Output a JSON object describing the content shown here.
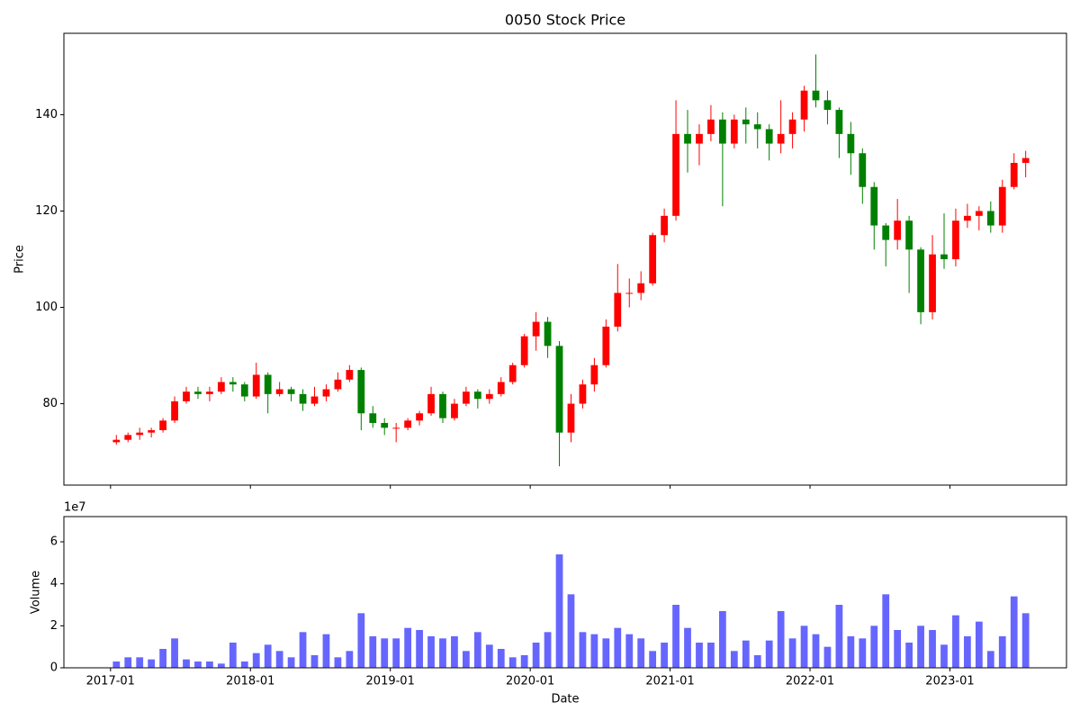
{
  "chart_data": [
    {
      "type": "candlestick",
      "title": "0050 Stock Price",
      "y_label": "Price",
      "up_color": "#ff0000",
      "down_color": "#008000",
      "x": [
        "2017-01",
        "2017-02",
        "2017-03",
        "2017-04",
        "2017-05",
        "2017-06",
        "2017-07",
        "2017-08",
        "2017-09",
        "2017-10",
        "2017-11",
        "2017-12",
        "2018-01",
        "2018-02",
        "2018-03",
        "2018-04",
        "2018-05",
        "2018-06",
        "2018-07",
        "2018-08",
        "2018-09",
        "2018-10",
        "2018-11",
        "2018-12",
        "2019-01",
        "2019-02",
        "2019-03",
        "2019-04",
        "2019-05",
        "2019-06",
        "2019-07",
        "2019-08",
        "2019-09",
        "2019-10",
        "2019-11",
        "2019-12",
        "2020-01",
        "2020-02",
        "2020-03",
        "2020-04",
        "2020-05",
        "2020-06",
        "2020-07",
        "2020-08",
        "2020-09",
        "2020-10",
        "2020-11",
        "2020-12",
        "2021-01",
        "2021-02",
        "2021-03",
        "2021-04",
        "2021-05",
        "2021-06",
        "2021-07",
        "2021-08",
        "2021-09",
        "2021-10",
        "2021-11",
        "2021-12",
        "2022-01",
        "2022-02",
        "2022-03",
        "2022-04",
        "2022-05",
        "2022-06",
        "2022-07",
        "2022-08",
        "2022-09",
        "2022-10",
        "2022-11",
        "2022-12",
        "2023-01",
        "2023-02",
        "2023-03",
        "2023-04",
        "2023-05",
        "2023-06",
        "2023-07"
      ],
      "open": [
        72,
        72.5,
        73.5,
        74,
        74.5,
        76.5,
        80.5,
        82.5,
        82,
        82.5,
        84.5,
        84,
        81.5,
        86,
        82,
        83,
        82,
        80,
        81.5,
        83,
        85,
        87,
        78,
        76,
        75,
        75,
        76.5,
        78,
        82,
        77,
        80,
        82.5,
        81,
        82,
        84.5,
        88,
        94,
        97,
        92,
        74,
        80,
        84,
        88,
        96,
        103,
        103,
        105,
        115,
        119,
        136,
        134,
        136,
        139,
        134,
        139,
        138,
        137,
        134,
        136,
        139,
        145,
        143,
        141,
        136,
        132,
        125,
        117,
        114,
        118,
        112,
        99,
        111,
        110,
        118,
        119,
        120,
        117,
        125,
        130
      ],
      "high": [
        73.5,
        74,
        75,
        75,
        77,
        81.5,
        83.5,
        83.5,
        83.5,
        85.5,
        85.5,
        84.5,
        88.5,
        86.5,
        84.5,
        83.5,
        83,
        83.5,
        84,
        86.5,
        88,
        87.5,
        79.5,
        77,
        76,
        77,
        78.5,
        83.5,
        82.5,
        81,
        83.5,
        83,
        83,
        85.5,
        88.5,
        94.5,
        99,
        98,
        93,
        82,
        85,
        89.5,
        97.5,
        109,
        106,
        107.5,
        115.5,
        120.5,
        143,
        141,
        138,
        142,
        140.5,
        140,
        141.5,
        140.5,
        138,
        143,
        140.5,
        146,
        152.5,
        145,
        141.5,
        138.5,
        133,
        126,
        117.5,
        122.5,
        119,
        112.5,
        115,
        119.5,
        120.5,
        121.5,
        121,
        122,
        126.5,
        132,
        132.5
      ],
      "low": [
        71.5,
        72,
        72.5,
        73,
        74,
        76,
        80,
        81,
        80.5,
        82,
        82.5,
        80.5,
        81,
        78,
        81.5,
        80.5,
        78.5,
        79.5,
        80.5,
        82.5,
        84.5,
        74.5,
        75,
        73.5,
        72,
        74.5,
        75.5,
        77.5,
        76,
        76.5,
        79.5,
        79,
        80,
        81.5,
        84,
        87.5,
        91,
        89.5,
        67,
        72,
        79,
        82.5,
        87.5,
        95,
        100,
        101.5,
        104.5,
        113.5,
        118,
        128,
        129.5,
        134.5,
        121,
        133,
        134,
        133,
        130.5,
        132,
        133,
        136.5,
        141.5,
        138,
        131,
        127.5,
        121.5,
        112,
        108.5,
        112,
        103,
        96.5,
        97.5,
        108,
        108.5,
        116.5,
        116,
        115.5,
        115.5,
        124.5,
        127
      ],
      "close": [
        72.5,
        73.5,
        74,
        74.5,
        76.5,
        80.5,
        82.5,
        82,
        82.5,
        84.5,
        84,
        81.5,
        86,
        82,
        83,
        82,
        80,
        81.5,
        83,
        85,
        87,
        78,
        76,
        75,
        75,
        76.5,
        78,
        82,
        77,
        80,
        82.5,
        81,
        82,
        84.5,
        88,
        94,
        97,
        92,
        74,
        80,
        84,
        88,
        96,
        103,
        103,
        105,
        115,
        119,
        136,
        134,
        136,
        139,
        134,
        139,
        138,
        137,
        134,
        136,
        139,
        145,
        143,
        141,
        136,
        132,
        125,
        117,
        114,
        118,
        112,
        99,
        111,
        110,
        118,
        119,
        120,
        117,
        125,
        130,
        131
      ],
      "xlim": [
        "2016-09",
        "2023-11"
      ],
      "xticks": [
        "2017-01",
        "2018-01",
        "2019-01",
        "2020-01",
        "2021-01",
        "2022-01",
        "2023-01"
      ],
      "ylim": [
        63.1,
        156.9
      ],
      "yticks": [
        80,
        100,
        120,
        140
      ]
    },
    {
      "type": "bar",
      "y_label": "Volume",
      "x_label": "Date",
      "offset_label": "1e7",
      "color": "#0000ff",
      "x": [
        "2017-01",
        "2017-02",
        "2017-03",
        "2017-04",
        "2017-05",
        "2017-06",
        "2017-07",
        "2017-08",
        "2017-09",
        "2017-10",
        "2017-11",
        "2017-12",
        "2018-01",
        "2018-02",
        "2018-03",
        "2018-04",
        "2018-05",
        "2018-06",
        "2018-07",
        "2018-08",
        "2018-09",
        "2018-10",
        "2018-11",
        "2018-12",
        "2019-01",
        "2019-02",
        "2019-03",
        "2019-04",
        "2019-05",
        "2019-06",
        "2019-07",
        "2019-08",
        "2019-09",
        "2019-10",
        "2019-11",
        "2019-12",
        "2020-01",
        "2020-02",
        "2020-03",
        "2020-04",
        "2020-05",
        "2020-06",
        "2020-07",
        "2020-08",
        "2020-09",
        "2020-10",
        "2020-11",
        "2020-12",
        "2021-01",
        "2021-02",
        "2021-03",
        "2021-04",
        "2021-05",
        "2021-06",
        "2021-07",
        "2021-08",
        "2021-09",
        "2021-10",
        "2021-11",
        "2021-12",
        "2022-01",
        "2022-02",
        "2022-03",
        "2022-04",
        "2022-05",
        "2022-06",
        "2022-07",
        "2022-08",
        "2022-09",
        "2022-10",
        "2022-11",
        "2022-12",
        "2023-01",
        "2023-02",
        "2023-03",
        "2023-04",
        "2023-05",
        "2023-06",
        "2023-07"
      ],
      "values": [
        3000000,
        5000000,
        5000000,
        4000000,
        9000000,
        14000000,
        4000000,
        3000000,
        3000000,
        2000000,
        12000000,
        3000000,
        7000000,
        11000000,
        8000000,
        5000000,
        17000000,
        6000000,
        16000000,
        5000000,
        8000000,
        26000000,
        15000000,
        14000000,
        14000000,
        19000000,
        18000000,
        15000000,
        14000000,
        15000000,
        8000000,
        17000000,
        11000000,
        9000000,
        5000000,
        6000000,
        12000000,
        17000000,
        54000000,
        35000000,
        17000000,
        16000000,
        14000000,
        19000000,
        16000000,
        14000000,
        8000000,
        12000000,
        30000000,
        19000000,
        12000000,
        12000000,
        27000000,
        8000000,
        13000000,
        6000000,
        13000000,
        27000000,
        14000000,
        20000000,
        16000000,
        10000000,
        30000000,
        15000000,
        14000000,
        20000000,
        35000000,
        18000000,
        12000000,
        20000000,
        18000000,
        11000000,
        25000000,
        15000000,
        22000000,
        8000000,
        15000000,
        34000000,
        26000000
      ],
      "xlim": [
        "2016-09",
        "2023-11"
      ],
      "xticks": [
        "2017-01",
        "2018-01",
        "2019-01",
        "2020-01",
        "2021-01",
        "2022-01",
        "2023-01"
      ],
      "ylim": [
        0,
        72000000
      ],
      "yticks": [
        {
          "value": 0,
          "label": "0"
        },
        {
          "value": 20000000,
          "label": "2"
        },
        {
          "value": 40000000,
          "label": "4"
        },
        {
          "value": 60000000,
          "label": "6"
        }
      ]
    }
  ]
}
